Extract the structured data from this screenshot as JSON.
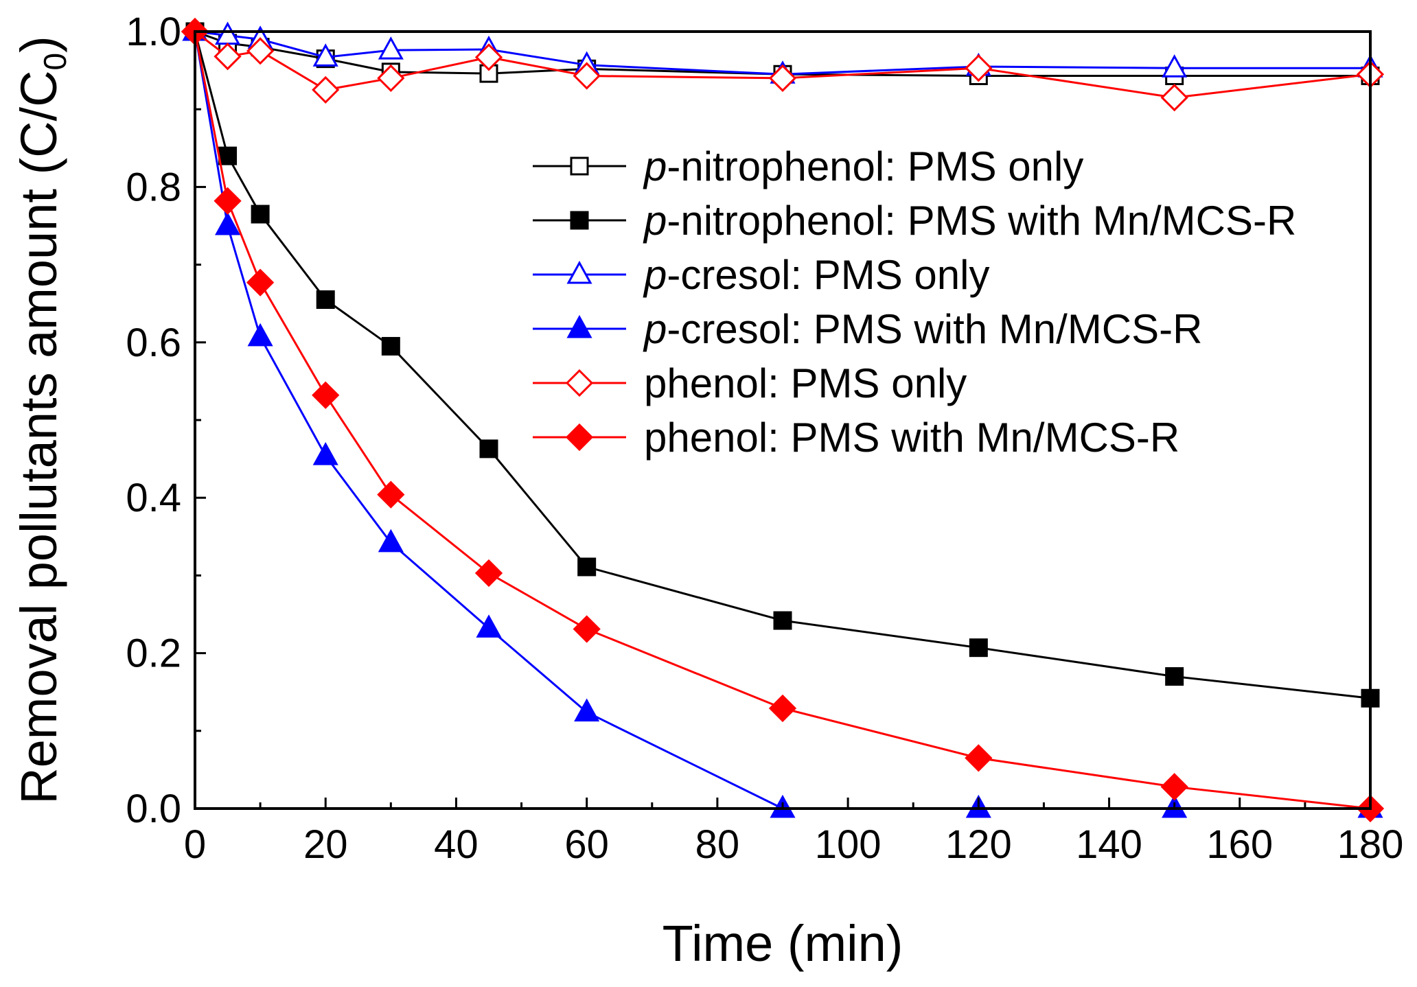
{
  "chart_data": {
    "type": "line",
    "title": "",
    "xlabel": "Time (min)",
    "ylabel": "Removal pollutants amount (C/C",
    "ylabel_subscript": "0",
    "ylabel_suffix": ")",
    "xlim": [
      0,
      180
    ],
    "ylim": [
      0.0,
      1.0
    ],
    "xticks": [
      "0",
      "20",
      "40",
      "60",
      "80",
      "100",
      "120",
      "140",
      "160",
      "180"
    ],
    "yticks": [
      "0.0",
      "0.2",
      "0.4",
      "0.6",
      "0.8",
      "1.0"
    ],
    "grid": false,
    "legend_position": "center-right",
    "x": [
      0,
      5,
      10,
      20,
      30,
      45,
      60,
      90,
      120,
      150,
      180
    ],
    "series": [
      {
        "name_prefix": "p",
        "name_rest": "-nitrophenol: PMS only",
        "marker": "square",
        "filled": false,
        "color": "#000000",
        "values": [
          1.0,
          0.985,
          0.98,
          0.965,
          0.948,
          0.946,
          0.952,
          0.945,
          0.943,
          0.943,
          0.943
        ]
      },
      {
        "name_prefix": "p",
        "name_rest": "-nitrophenol: PMS with Mn/MCS-R",
        "marker": "square",
        "filled": true,
        "color": "#000000",
        "values": [
          1.0,
          0.84,
          0.765,
          0.655,
          0.595,
          0.463,
          0.311,
          0.242,
          0.207,
          0.17,
          0.142
        ]
      },
      {
        "name_prefix": "p",
        "name_rest": "-cresol: PMS only",
        "marker": "triangle",
        "filled": false,
        "color": "#0000ff",
        "values": [
          1.0,
          0.995,
          0.99,
          0.967,
          0.976,
          0.977,
          0.957,
          0.945,
          0.955,
          0.953,
          0.953
        ]
      },
      {
        "name_prefix": "p",
        "name_rest": "-cresol: PMS with Mn/MCS-R",
        "marker": "triangle",
        "filled": true,
        "color": "#0000ff",
        "values": [
          1.0,
          0.75,
          0.607,
          0.454,
          0.342,
          0.232,
          0.124,
          0.0,
          0.0,
          0.0,
          0.0
        ]
      },
      {
        "name_prefix": "",
        "name_rest": "phenol: PMS only",
        "marker": "diamond",
        "filled": false,
        "color": "#ff0000",
        "values": [
          1.0,
          0.968,
          0.975,
          0.925,
          0.94,
          0.967,
          0.943,
          0.94,
          0.953,
          0.915,
          0.945
        ]
      },
      {
        "name_prefix": "",
        "name_rest": "phenol: PMS with Mn/MCS-R",
        "marker": "diamond",
        "filled": true,
        "color": "#ff0000",
        "values": [
          1.0,
          0.782,
          0.677,
          0.532,
          0.404,
          0.303,
          0.231,
          0.129,
          0.065,
          0.028,
          0.0
        ]
      }
    ]
  }
}
